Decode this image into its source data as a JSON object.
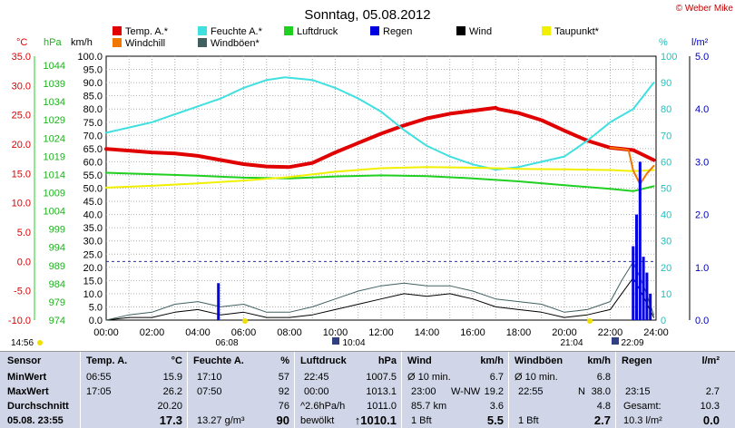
{
  "title": "Sonntag, 05.08.2012",
  "copyright": "© Weber Mike",
  "axis_units": {
    "temp": "°C",
    "press": "hPa",
    "speed": "km/h",
    "humid": "%",
    "rain": "l/m²"
  },
  "legend": [
    {
      "label": "Temp. A.*",
      "color": "#e00000"
    },
    {
      "label": "Feuchte A.*",
      "color": "#40e0e0"
    },
    {
      "label": "Luftdruck",
      "color": "#20d020"
    },
    {
      "label": "Regen",
      "color": "#0000e0"
    },
    {
      "label": "Wind",
      "color": "#000000"
    },
    {
      "label": "Taupunkt*",
      "color": "#f0f000"
    },
    {
      "label": "Windchill",
      "color": "#f07800"
    },
    {
      "label": "Windböen*",
      "color": "#406060"
    }
  ],
  "time_markers": {
    "sunrise": "06:08",
    "sunset": "21:04",
    "moonrise": "22:09",
    "moonset": "10:04",
    "left_time": "14:56"
  },
  "chart_data": {
    "type": "line",
    "title": "Sonntag, 05.08.2012",
    "x_ticks": [
      "00:00",
      "02:00",
      "04:00",
      "06:00",
      "08:00",
      "10:00",
      "12:00",
      "14:00",
      "16:00",
      "18:00",
      "20:00",
      "22:00",
      "24:00"
    ],
    "xlim": [
      0,
      24
    ],
    "axes": {
      "temp": {
        "unit": "°C",
        "lim": [
          -10,
          35
        ],
        "ticks": [
          "35.0",
          "30.0",
          "25.0",
          "20.0",
          "15.0",
          "10.0",
          "5.0",
          "0.0",
          "-5.0",
          "-10.0"
        ]
      },
      "press": {
        "unit": "hPa",
        "lim": [
          974,
          1044
        ],
        "ticks": [
          "1044",
          "1039",
          "1034",
          "1029",
          "1024",
          "1019",
          "1014",
          "1009",
          "1004",
          "999",
          "994",
          "989",
          "984",
          "979",
          "974"
        ]
      },
      "speed": {
        "unit": "km/h",
        "lim": [
          0,
          100
        ],
        "ticks": [
          "100.0",
          "95.0",
          "90.0",
          "85.0",
          "80.0",
          "75.0",
          "70.0",
          "65.0",
          "60.0",
          "55.0",
          "50.0",
          "45.0",
          "40.0",
          "35.0",
          "30.0",
          "25.0",
          "20.0",
          "15.0",
          "10.0",
          "5.0",
          "0.0"
        ]
      },
      "humid": {
        "unit": "%",
        "lim": [
          0,
          100
        ],
        "ticks": [
          "100",
          "90",
          "80",
          "70",
          "60",
          "50",
          "40",
          "30",
          "20",
          "10",
          "0"
        ]
      },
      "rain": {
        "unit": "l/m²",
        "lim": [
          0,
          5
        ],
        "ticks": [
          "5.0",
          "4.0",
          "3.0",
          "2.0",
          "1.0",
          "0.0"
        ]
      }
    },
    "series": [
      {
        "name": "Temp. A.*",
        "axis": "temp",
        "color": "#e00000",
        "width": 4,
        "x": [
          0,
          1,
          2,
          3,
          4,
          5,
          6,
          7,
          8,
          9,
          10,
          11,
          12,
          13,
          14,
          15,
          16,
          17,
          17.1,
          18,
          19,
          20,
          21,
          22,
          23,
          23.9
        ],
        "y": [
          19.2,
          18.9,
          18.6,
          18.4,
          18.0,
          17.3,
          16.6,
          16.2,
          16.1,
          16.8,
          18.6,
          20.2,
          21.8,
          23.2,
          24.4,
          25.2,
          25.7,
          26.2,
          26.0,
          25.3,
          24.1,
          22.3,
          20.6,
          19.4,
          19.0,
          17.3
        ]
      },
      {
        "name": "Feuchte A.*",
        "axis": "humid",
        "color": "#40e0e0",
        "width": 2,
        "x": [
          0,
          1,
          2,
          3,
          4,
          5,
          6,
          7,
          7.8,
          9,
          10,
          11,
          12,
          13,
          14,
          15,
          16,
          17,
          18,
          19,
          20,
          21,
          22,
          23,
          23.9
        ],
        "y": [
          71,
          73,
          75,
          78,
          81,
          84,
          88,
          91,
          92,
          91,
          88,
          84,
          79,
          72,
          66,
          62,
          59,
          57,
          58,
          60,
          62,
          68,
          75,
          80,
          90
        ]
      },
      {
        "name": "Luftdruck",
        "axis": "press",
        "color": "#20d020",
        "width": 2,
        "x": [
          0,
          2,
          4,
          6,
          8,
          10,
          12,
          14,
          16,
          18,
          20,
          22,
          23,
          23.9
        ],
        "y": [
          1013.1,
          1012.7,
          1012.3,
          1011.8,
          1011.6,
          1012.1,
          1012.4,
          1012.2,
          1011.6,
          1010.8,
          1009.8,
          1008.8,
          1008.2,
          1009.5
        ]
      },
      {
        "name": "Taupunkt*",
        "axis": "temp",
        "color": "#f0f000",
        "width": 2,
        "x": [
          0,
          2,
          4,
          6,
          8,
          10,
          12,
          14,
          16,
          18,
          20,
          22,
          23,
          23.9
        ],
        "y": [
          12.6,
          12.9,
          13.3,
          13.8,
          14.4,
          15.3,
          15.9,
          16.1,
          16.0,
          15.8,
          15.7,
          15.6,
          15.4,
          15.6
        ]
      },
      {
        "name": "Windchill",
        "axis": "temp",
        "color": "#f07800",
        "width": 2,
        "x": [
          22,
          22.5,
          22.8,
          23,
          23.3,
          23.6,
          23.9
        ],
        "y": [
          19.4,
          19.2,
          19.0,
          15.5,
          13.2,
          15.0,
          16.3
        ]
      },
      {
        "name": "Wind",
        "axis": "speed",
        "color": "#000000",
        "width": 1,
        "x": [
          0,
          1,
          2,
          3,
          4,
          5,
          6,
          7,
          8,
          9,
          10,
          11,
          12,
          13,
          14,
          15,
          16,
          17,
          18,
          19,
          20,
          21,
          22,
          22.5,
          23,
          23.5,
          23.9
        ],
        "y": [
          0,
          1,
          1,
          3,
          4,
          2,
          3,
          1,
          1,
          2,
          4,
          6,
          8,
          10,
          9,
          10,
          8,
          5,
          4,
          3,
          1,
          2,
          4,
          10,
          16,
          8,
          1
        ]
      },
      {
        "name": "Windböen*",
        "axis": "speed",
        "color": "#406060",
        "width": 1,
        "x": [
          0,
          1,
          2,
          3,
          4,
          5,
          6,
          7,
          8,
          9,
          10,
          11,
          12,
          13,
          14,
          15,
          16,
          17,
          18,
          19,
          20,
          21,
          22,
          22.5,
          23,
          23.5,
          23.9
        ],
        "y": [
          0,
          2,
          3,
          6,
          7,
          5,
          6,
          3,
          3,
          5,
          8,
          11,
          13,
          14,
          13,
          13,
          11,
          8,
          7,
          6,
          3,
          4,
          7,
          15,
          22,
          12,
          2
        ]
      },
      {
        "name": "Regen",
        "axis": "rain",
        "type": "bar",
        "color": "#0000e0",
        "x": [
          4.9,
          23.0,
          23.15,
          23.3,
          23.45,
          23.6,
          23.75
        ],
        "y": [
          0.7,
          1.4,
          2.0,
          3.0,
          1.2,
          0.9,
          0.5
        ]
      }
    ]
  },
  "summary": {
    "sensor": {
      "header": "Sensor",
      "rows": [
        "MinWert",
        "MaxWert",
        "Durchschnitt"
      ],
      "date": "05.08. 23:55"
    },
    "temp": {
      "header": "Temp. A.",
      "unit": "°C",
      "min_time": "06:55",
      "min": "15.9",
      "max_time": "17:05",
      "max": "26.2",
      "avg": "20.20",
      "now": "17.3"
    },
    "humid": {
      "header": "Feuchte A.",
      "unit": "%",
      "min_time": "17:10",
      "min": "57",
      "max_time": "07:50",
      "max": "92",
      "avg": "76",
      "abs": "13.27 g/m³",
      "now": "90"
    },
    "press": {
      "header": "Luftdruck",
      "unit": "hPa",
      "min_time": "22:45",
      "min": "1007.5",
      "max_time": "00:00",
      "max": "1013.1",
      "trend": "^2.6hPa/h",
      "avg": "1011.0",
      "weather": "bewölkt",
      "now": "↑1010.1"
    },
    "wind": {
      "header": "Wind",
      "unit": "km/h",
      "r1_label": "Ø 10 min.",
      "r1_val": "6.7",
      "r2_time": "23:00",
      "r2_dir": "W-NW",
      "r2_val": "19.2",
      "r3_label": "85.7 km",
      "r3_val": "3.6",
      "bft": "1 Bft",
      "now": "5.5"
    },
    "gust": {
      "header": "Windböen",
      "unit": "km/h",
      "r1_label": "Ø 10 min.",
      "r1_val": "6.8",
      "r2_time": "22:55",
      "r2_dir": "N",
      "r2_val": "38.0",
      "r3_val": "4.8",
      "bft": "1 Bft",
      "now": "2.7"
    },
    "rain": {
      "header": "Regen",
      "unit": "l/m²",
      "r2_time": "23:15",
      "r2_val": "2.7",
      "r3_label": "Gesamt:",
      "r3_val": "10.3",
      "rate": "10.3 l/m²",
      "now": "0.0"
    }
  }
}
